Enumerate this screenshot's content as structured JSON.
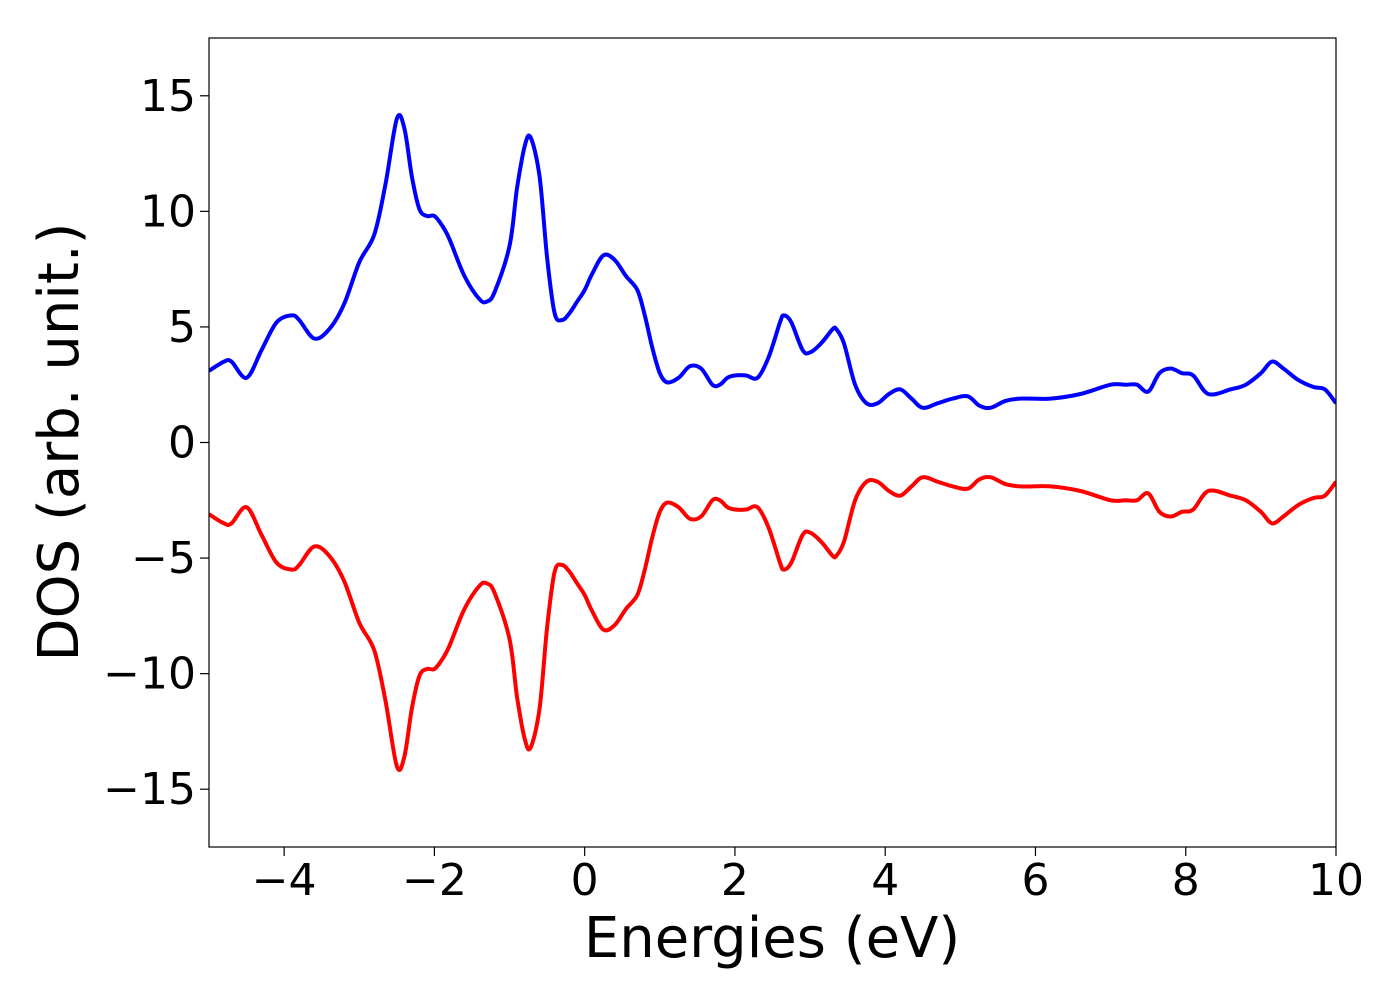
{
  "chart_data": {
    "type": "line",
    "title": "",
    "xlabel": "Energies (eV)",
    "ylabel": "DOS (arb. unit.)",
    "xlim": [
      -5,
      10
    ],
    "ylim": [
      -17.5,
      17.5
    ],
    "grid": false,
    "legend": "none",
    "x_ticks": [
      -4,
      -2,
      0,
      2,
      4,
      6,
      8,
      10
    ],
    "x_tick_labels": [
      "−4",
      "−2",
      "0",
      "2",
      "4",
      "6",
      "8",
      "10"
    ],
    "y_ticks": [
      15,
      10,
      5,
      0,
      -5,
      -10,
      -15
    ],
    "y_tick_labels": [
      "15",
      "10",
      "5",
      "0",
      "−5",
      "−10",
      "−15"
    ],
    "series": [
      {
        "color": "#0000ff",
        "x": [
          -5.0,
          -4.8,
          -4.7,
          -4.5,
          -4.3,
          -4.1,
          -3.9,
          -3.8,
          -3.6,
          -3.4,
          -3.2,
          -3.0,
          -2.8,
          -2.65,
          -2.5,
          -2.4,
          -2.3,
          -2.2,
          -2.1,
          -2.0,
          -1.9,
          -1.8,
          -1.6,
          -1.4,
          -1.3,
          -1.2,
          -1.0,
          -0.9,
          -0.8,
          -0.72,
          -0.6,
          -0.5,
          -0.4,
          -0.3,
          -0.2,
          -0.1,
          0.0,
          0.1,
          0.25,
          0.4,
          0.55,
          0.7,
          0.8,
          0.9,
          1.0,
          1.1,
          1.25,
          1.4,
          1.55,
          1.7,
          1.8,
          1.9,
          2.0,
          2.15,
          2.3,
          2.45,
          2.6,
          2.65,
          2.75,
          2.9,
          3.0,
          3.15,
          3.3,
          3.35,
          3.45,
          3.6,
          3.75,
          3.9,
          4.05,
          4.2,
          4.35,
          4.5,
          4.7,
          4.9,
          5.1,
          5.25,
          5.4,
          5.6,
          5.8,
          6.2,
          6.6,
          7.0,
          7.2,
          7.35,
          7.5,
          7.65,
          7.8,
          7.95,
          8.1,
          8.3,
          8.6,
          8.8,
          9.0,
          9.15,
          9.3,
          9.5,
          9.7,
          9.85,
          10.0
        ],
        "y": [
          3.1,
          3.5,
          3.5,
          2.8,
          4.0,
          5.2,
          5.5,
          5.3,
          4.5,
          4.9,
          6.0,
          7.8,
          9.0,
          11.2,
          14.0,
          13.6,
          11.5,
          10.1,
          9.8,
          9.8,
          9.4,
          8.8,
          7.2,
          6.2,
          6.1,
          6.5,
          8.5,
          11.0,
          12.8,
          13.2,
          11.5,
          8.0,
          5.6,
          5.3,
          5.6,
          6.1,
          6.6,
          7.3,
          8.1,
          7.9,
          7.2,
          6.6,
          5.5,
          4.1,
          3.0,
          2.6,
          2.8,
          3.3,
          3.2,
          2.5,
          2.5,
          2.8,
          2.9,
          2.9,
          2.8,
          3.7,
          5.2,
          5.5,
          5.2,
          4.0,
          3.9,
          4.3,
          4.9,
          4.9,
          4.3,
          2.5,
          1.7,
          1.7,
          2.1,
          2.3,
          1.9,
          1.5,
          1.7,
          1.9,
          2.0,
          1.6,
          1.5,
          1.8,
          1.9,
          1.9,
          2.1,
          2.5,
          2.5,
          2.5,
          2.2,
          3.0,
          3.2,
          3.0,
          2.9,
          2.1,
          2.3,
          2.5,
          3.0,
          3.5,
          3.2,
          2.7,
          2.4,
          2.3,
          1.7
        ]
      },
      {
        "color": "#ff0000",
        "x": [
          -5.0,
          -4.8,
          -4.7,
          -4.5,
          -4.3,
          -4.1,
          -3.9,
          -3.8,
          -3.6,
          -3.4,
          -3.2,
          -3.0,
          -2.8,
          -2.65,
          -2.5,
          -2.4,
          -2.3,
          -2.2,
          -2.1,
          -2.0,
          -1.9,
          -1.8,
          -1.6,
          -1.4,
          -1.3,
          -1.2,
          -1.0,
          -0.9,
          -0.8,
          -0.72,
          -0.6,
          -0.5,
          -0.4,
          -0.3,
          -0.2,
          -0.1,
          0.0,
          0.1,
          0.25,
          0.4,
          0.55,
          0.7,
          0.8,
          0.9,
          1.0,
          1.1,
          1.25,
          1.4,
          1.55,
          1.7,
          1.8,
          1.9,
          2.0,
          2.15,
          2.3,
          2.45,
          2.6,
          2.65,
          2.75,
          2.9,
          3.0,
          3.15,
          3.3,
          3.35,
          3.45,
          3.6,
          3.75,
          3.9,
          4.05,
          4.2,
          4.35,
          4.5,
          4.7,
          4.9,
          5.1,
          5.25,
          5.4,
          5.6,
          5.8,
          6.2,
          6.6,
          7.0,
          7.2,
          7.35,
          7.5,
          7.65,
          7.8,
          7.95,
          8.1,
          8.3,
          8.6,
          8.8,
          9.0,
          9.15,
          9.3,
          9.5,
          9.7,
          9.85,
          10.0
        ],
        "y": [
          -3.1,
          -3.5,
          -3.5,
          -2.8,
          -4.0,
          -5.2,
          -5.5,
          -5.3,
          -4.5,
          -4.9,
          -6.0,
          -7.8,
          -9.0,
          -11.2,
          -14.0,
          -13.6,
          -11.5,
          -10.1,
          -9.8,
          -9.8,
          -9.4,
          -8.8,
          -7.2,
          -6.2,
          -6.1,
          -6.5,
          -8.5,
          -11.0,
          -12.8,
          -13.2,
          -11.5,
          -8.0,
          -5.6,
          -5.3,
          -5.6,
          -6.1,
          -6.6,
          -7.3,
          -8.1,
          -7.9,
          -7.2,
          -6.6,
          -5.5,
          -4.1,
          -3.0,
          -2.6,
          -2.8,
          -3.3,
          -3.2,
          -2.5,
          -2.5,
          -2.8,
          -2.9,
          -2.9,
          -2.8,
          -3.7,
          -5.2,
          -5.5,
          -5.2,
          -4.0,
          -3.9,
          -4.3,
          -4.9,
          -4.9,
          -4.3,
          -2.5,
          -1.7,
          -1.7,
          -2.1,
          -2.3,
          -1.9,
          -1.5,
          -1.7,
          -1.9,
          -2.0,
          -1.6,
          -1.5,
          -1.8,
          -1.9,
          -1.9,
          -2.1,
          -2.5,
          -2.5,
          -2.5,
          -2.2,
          -3.0,
          -3.2,
          -3.0,
          -2.9,
          -2.1,
          -2.3,
          -2.5,
          -3.0,
          -3.5,
          -3.2,
          -2.7,
          -2.4,
          -2.3,
          -1.7
        ]
      }
    ]
  }
}
